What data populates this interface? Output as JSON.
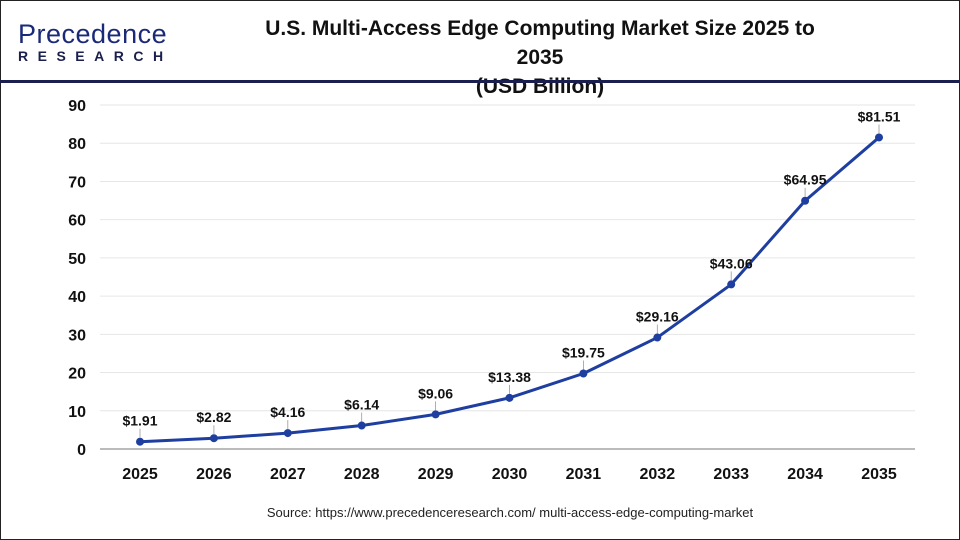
{
  "logo": {
    "text_main": "Precedence",
    "text_sub": "RESEARCH"
  },
  "colors": {
    "line": "#1f3fa0",
    "grid": "#e6e6e6",
    "axis": "#bbbbbb",
    "header_rule": "#1a1f4e"
  },
  "source": "Source: https://www.precedenceresearch.com/ multi-access-edge-computing-market",
  "chart_data": {
    "type": "line",
    "title": "U.S. Multi-Access Edge Computing Market Size 2025 to 2035",
    "subtitle": "(USD Billion)",
    "categories": [
      "2025",
      "2026",
      "2027",
      "2028",
      "2029",
      "2030",
      "2031",
      "2032",
      "2033",
      "2034",
      "2035"
    ],
    "values": [
      1.91,
      2.82,
      4.16,
      6.14,
      9.06,
      13.38,
      19.75,
      29.16,
      43.06,
      64.95,
      81.51
    ],
    "data_labels": [
      "$1.91",
      "$2.82",
      "$4.16",
      "$6.14",
      "$9.06",
      "$13.38",
      "$19.75",
      "$29.16",
      "$43.06",
      "$64.95",
      "$81.51"
    ],
    "yticks": [
      "0",
      "10",
      "20",
      "30",
      "40",
      "50",
      "60",
      "70",
      "80",
      "90"
    ],
    "ylim": [
      0,
      90
    ],
    "grid": true,
    "legend": "none"
  }
}
